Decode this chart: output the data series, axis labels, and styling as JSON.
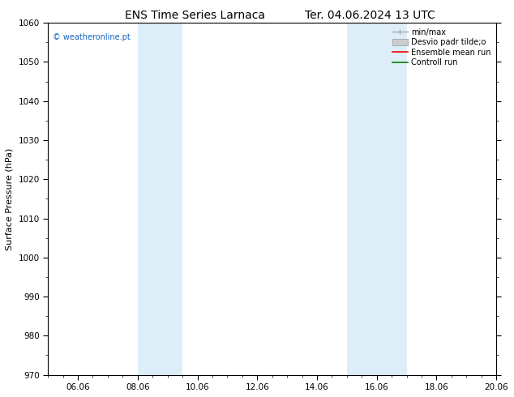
{
  "title_left": "ENS Time Series Larnaca",
  "title_right": "Ter. 04.06.2024 13 UTC",
  "ylabel": "Surface Pressure (hPa)",
  "ylim": [
    970,
    1060
  ],
  "yticks": [
    970,
    980,
    990,
    1000,
    1010,
    1020,
    1030,
    1040,
    1050,
    1060
  ],
  "xlim": [
    0,
    15
  ],
  "xtick_labels": [
    "06.06",
    "08.06",
    "10.06",
    "12.06",
    "14.06",
    "16.06",
    "18.06",
    "20.06"
  ],
  "xtick_positions": [
    1,
    3,
    5,
    7,
    9,
    11,
    13,
    15
  ],
  "shade_bands": [
    {
      "x_start": 3,
      "x_end": 4.5,
      "color": "#ddeef8"
    },
    {
      "x_start": 10,
      "x_end": 12,
      "color": "#ddeef8"
    }
  ],
  "watermark": "© weatheronline.pt",
  "watermark_color": "#1565c0",
  "background_color": "#ffffff",
  "plot_background": "#ffffff",
  "legend_labels": [
    "min/max",
    "Desvio padr tilde;o",
    "Ensemble mean run",
    "Controll run"
  ],
  "legend_colors": [
    "#aaaaaa",
    "#cccccc",
    "#ff0000",
    "#008000"
  ],
  "legend_styles": [
    "minmax",
    "rect",
    "line",
    "line"
  ],
  "title_fontsize": 10,
  "ylabel_fontsize": 8,
  "tick_fontsize": 7.5,
  "legend_fontsize": 7,
  "watermark_fontsize": 7
}
